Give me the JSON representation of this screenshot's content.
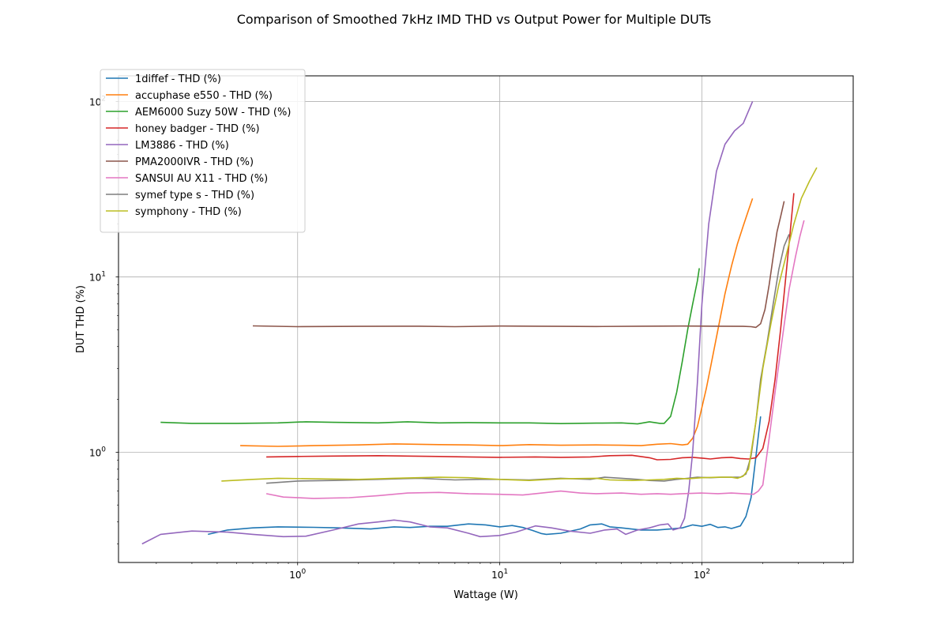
{
  "chart_data": {
    "type": "line",
    "title": "Comparison of Smoothed 7kHz IMD THD vs Output Power for Multiple DUTs",
    "xlabel": "Wattage (W)",
    "ylabel": "DUT THD (%)",
    "xscale": "log",
    "yscale": "log",
    "xlim": [
      0.13,
      560
    ],
    "ylim": [
      0.235,
      140
    ],
    "grid": true,
    "legend_position": "upper-left",
    "x_ticks": [
      {
        "value": 1,
        "base": "10",
        "exp": "0"
      },
      {
        "value": 10,
        "base": "10",
        "exp": "1"
      },
      {
        "value": 100,
        "base": "10",
        "exp": "2"
      }
    ],
    "y_ticks": [
      {
        "value": 1,
        "base": "10",
        "exp": "0"
      },
      {
        "value": 10,
        "base": "10",
        "exp": "1"
      },
      {
        "value": 100,
        "base": "10",
        "exp": "2"
      }
    ],
    "series": [
      {
        "name": "1diffef - THD (%)",
        "color": "#1f77b4",
        "points": [
          [
            0.36,
            0.34
          ],
          [
            0.45,
            0.36
          ],
          [
            0.6,
            0.37
          ],
          [
            0.8,
            0.375
          ],
          [
            1.2,
            0.373
          ],
          [
            1.6,
            0.37
          ],
          [
            2.3,
            0.365
          ],
          [
            3,
            0.375
          ],
          [
            3.6,
            0.372
          ],
          [
            4.5,
            0.378
          ],
          [
            5.5,
            0.378
          ],
          [
            7,
            0.39
          ],
          [
            8.5,
            0.385
          ],
          [
            10,
            0.375
          ],
          [
            11.5,
            0.382
          ],
          [
            13,
            0.372
          ],
          [
            14.5,
            0.358
          ],
          [
            16,
            0.344
          ],
          [
            17,
            0.34
          ],
          [
            20,
            0.345
          ],
          [
            25,
            0.365
          ],
          [
            28,
            0.385
          ],
          [
            32,
            0.39
          ],
          [
            35,
            0.375
          ],
          [
            40,
            0.37
          ],
          [
            50,
            0.36
          ],
          [
            60,
            0.36
          ],
          [
            70,
            0.365
          ],
          [
            80,
            0.37
          ],
          [
            90,
            0.385
          ],
          [
            100,
            0.378
          ],
          [
            110,
            0.388
          ],
          [
            120,
            0.372
          ],
          [
            130,
            0.375
          ],
          [
            140,
            0.367
          ],
          [
            155,
            0.38
          ],
          [
            165,
            0.43
          ],
          [
            175,
            0.55
          ],
          [
            185,
            0.95
          ],
          [
            195,
            1.6
          ]
        ]
      },
      {
        "name": "accuphase e550 - THD (%)",
        "color": "#ff7f0e",
        "points": [
          [
            0.52,
            1.09
          ],
          [
            0.8,
            1.08
          ],
          [
            1.2,
            1.09
          ],
          [
            2,
            1.1
          ],
          [
            3,
            1.115
          ],
          [
            5,
            1.105
          ],
          [
            7,
            1.1
          ],
          [
            10,
            1.09
          ],
          [
            14,
            1.105
          ],
          [
            20,
            1.095
          ],
          [
            30,
            1.1
          ],
          [
            40,
            1.095
          ],
          [
            50,
            1.09
          ],
          [
            60,
            1.11
          ],
          [
            70,
            1.12
          ],
          [
            80,
            1.1
          ],
          [
            85,
            1.11
          ],
          [
            90,
            1.2
          ],
          [
            95,
            1.4
          ],
          [
            100,
            1.8
          ],
          [
            105,
            2.3
          ],
          [
            110,
            3.0
          ],
          [
            120,
            5.0
          ],
          [
            130,
            8.0
          ],
          [
            140,
            11.5
          ],
          [
            150,
            15.5
          ],
          [
            160,
            19.5
          ],
          [
            170,
            24
          ],
          [
            178,
            28
          ]
        ]
      },
      {
        "name": "AEM6000 Suzy 50W - THD (%)",
        "color": "#2ca02c",
        "points": [
          [
            0.21,
            1.48
          ],
          [
            0.3,
            1.46
          ],
          [
            0.5,
            1.46
          ],
          [
            0.8,
            1.47
          ],
          [
            1.1,
            1.49
          ],
          [
            1.5,
            1.48
          ],
          [
            2.5,
            1.47
          ],
          [
            3.5,
            1.49
          ],
          [
            5,
            1.47
          ],
          [
            7,
            1.475
          ],
          [
            10,
            1.47
          ],
          [
            14,
            1.47
          ],
          [
            20,
            1.455
          ],
          [
            30,
            1.465
          ],
          [
            40,
            1.47
          ],
          [
            48,
            1.45
          ],
          [
            55,
            1.49
          ],
          [
            62,
            1.46
          ],
          [
            65,
            1.46
          ],
          [
            70,
            1.6
          ],
          [
            75,
            2.2
          ],
          [
            80,
            3.3
          ],
          [
            85,
            5.0
          ],
          [
            90,
            7.0
          ],
          [
            95,
            9.5
          ],
          [
            97,
            11.2
          ]
        ]
      },
      {
        "name": "honey badger - THD (%)",
        "color": "#d62728",
        "points": [
          [
            0.7,
            0.94
          ],
          [
            1,
            0.945
          ],
          [
            1.5,
            0.95
          ],
          [
            2.5,
            0.955
          ],
          [
            3.5,
            0.95
          ],
          [
            5,
            0.945
          ],
          [
            7,
            0.94
          ],
          [
            10,
            0.935
          ],
          [
            15,
            0.94
          ],
          [
            20,
            0.935
          ],
          [
            28,
            0.94
          ],
          [
            35,
            0.955
          ],
          [
            45,
            0.96
          ],
          [
            55,
            0.93
          ],
          [
            60,
            0.905
          ],
          [
            70,
            0.91
          ],
          [
            80,
            0.93
          ],
          [
            90,
            0.935
          ],
          [
            100,
            0.925
          ],
          [
            110,
            0.915
          ],
          [
            125,
            0.93
          ],
          [
            140,
            0.935
          ],
          [
            155,
            0.92
          ],
          [
            170,
            0.915
          ],
          [
            185,
            0.93
          ],
          [
            200,
            1.05
          ],
          [
            215,
            1.5
          ],
          [
            230,
            2.6
          ],
          [
            245,
            5.0
          ],
          [
            260,
            10.0
          ],
          [
            272,
            17.0
          ],
          [
            285,
            30
          ]
        ]
      },
      {
        "name": "LM3886 - THD (%)",
        "color": "#9467bd",
        "points": [
          [
            0.17,
            0.3
          ],
          [
            0.21,
            0.34
          ],
          [
            0.3,
            0.355
          ],
          [
            0.45,
            0.35
          ],
          [
            0.6,
            0.34
          ],
          [
            0.85,
            0.33
          ],
          [
            1.1,
            0.332
          ],
          [
            1.5,
            0.36
          ],
          [
            2,
            0.39
          ],
          [
            2.5,
            0.4
          ],
          [
            3,
            0.41
          ],
          [
            3.6,
            0.4
          ],
          [
            4.5,
            0.375
          ],
          [
            5.5,
            0.37
          ],
          [
            7,
            0.345
          ],
          [
            8,
            0.33
          ],
          [
            10,
            0.335
          ],
          [
            12,
            0.35
          ],
          [
            15,
            0.38
          ],
          [
            18,
            0.37
          ],
          [
            22,
            0.355
          ],
          [
            28,
            0.345
          ],
          [
            33,
            0.36
          ],
          [
            38,
            0.365
          ],
          [
            42,
            0.34
          ],
          [
            48,
            0.36
          ],
          [
            55,
            0.37
          ],
          [
            62,
            0.385
          ],
          [
            68,
            0.39
          ],
          [
            72,
            0.36
          ],
          [
            78,
            0.37
          ],
          [
            82,
            0.42
          ],
          [
            86,
            0.6
          ],
          [
            90,
            1.0
          ],
          [
            95,
            2.5
          ],
          [
            100,
            7.0
          ],
          [
            108,
            20
          ],
          [
            118,
            40
          ],
          [
            130,
            57
          ],
          [
            145,
            68
          ],
          [
            160,
            75
          ],
          [
            178,
            100
          ]
        ]
      },
      {
        "name": "PMA2000IVR - THD (%)",
        "color": "#8c564b",
        "points": [
          [
            0.6,
            5.25
          ],
          [
            1,
            5.2
          ],
          [
            2,
            5.22
          ],
          [
            4,
            5.23
          ],
          [
            6,
            5.2
          ],
          [
            10,
            5.24
          ],
          [
            15,
            5.23
          ],
          [
            20,
            5.22
          ],
          [
            30,
            5.21
          ],
          [
            50,
            5.23
          ],
          [
            80,
            5.24
          ],
          [
            120,
            5.23
          ],
          [
            160,
            5.22
          ],
          [
            175,
            5.2
          ],
          [
            185,
            5.15
          ],
          [
            195,
            5.4
          ],
          [
            205,
            6.5
          ],
          [
            215,
            9.0
          ],
          [
            225,
            13.0
          ],
          [
            235,
            18.0
          ],
          [
            245,
            22.0
          ],
          [
            255,
            27.0
          ]
        ]
      },
      {
        "name": "SANSUI AU X11 - THD (%)",
        "color": "#e377c2",
        "points": [
          [
            0.7,
            0.58
          ],
          [
            0.85,
            0.555
          ],
          [
            1.2,
            0.545
          ],
          [
            1.8,
            0.55
          ],
          [
            2.5,
            0.565
          ],
          [
            3.5,
            0.585
          ],
          [
            5,
            0.59
          ],
          [
            7,
            0.58
          ],
          [
            10,
            0.575
          ],
          [
            13,
            0.57
          ],
          [
            15,
            0.58
          ],
          [
            20,
            0.6
          ],
          [
            25,
            0.585
          ],
          [
            30,
            0.58
          ],
          [
            40,
            0.585
          ],
          [
            50,
            0.575
          ],
          [
            60,
            0.58
          ],
          [
            70,
            0.575
          ],
          [
            80,
            0.58
          ],
          [
            100,
            0.585
          ],
          [
            120,
            0.58
          ],
          [
            140,
            0.585
          ],
          [
            160,
            0.58
          ],
          [
            180,
            0.575
          ],
          [
            190,
            0.6
          ],
          [
            200,
            0.65
          ],
          [
            205,
            0.8
          ],
          [
            215,
            1.2
          ],
          [
            230,
            2.2
          ],
          [
            250,
            4.5
          ],
          [
            270,
            8.5
          ],
          [
            290,
            13.0
          ],
          [
            305,
            17.0
          ],
          [
            320,
            21.0
          ]
        ]
      },
      {
        "name": "symef type s - THD (%)",
        "color": "#7f7f7f",
        "points": [
          [
            0.7,
            0.665
          ],
          [
            1,
            0.685
          ],
          [
            1.5,
            0.69
          ],
          [
            2.5,
            0.7
          ],
          [
            4,
            0.71
          ],
          [
            6,
            0.695
          ],
          [
            8,
            0.7
          ],
          [
            10,
            0.7
          ],
          [
            14,
            0.695
          ],
          [
            20,
            0.71
          ],
          [
            28,
            0.7
          ],
          [
            33,
            0.72
          ],
          [
            40,
            0.71
          ],
          [
            48,
            0.7
          ],
          [
            55,
            0.69
          ],
          [
            65,
            0.685
          ],
          [
            75,
            0.7
          ],
          [
            85,
            0.71
          ],
          [
            95,
            0.72
          ],
          [
            110,
            0.715
          ],
          [
            125,
            0.72
          ],
          [
            140,
            0.72
          ],
          [
            155,
            0.72
          ],
          [
            165,
            0.75
          ],
          [
            175,
            0.95
          ],
          [
            185,
            1.5
          ],
          [
            195,
            2.6
          ],
          [
            210,
            4.2
          ],
          [
            225,
            7.0
          ],
          [
            240,
            11.0
          ],
          [
            255,
            15.0
          ],
          [
            270,
            17.5
          ]
        ]
      },
      {
        "name": "symphony - THD (%)",
        "color": "#bcbd22",
        "points": [
          [
            0.42,
            0.685
          ],
          [
            0.6,
            0.7
          ],
          [
            0.8,
            0.71
          ],
          [
            1.2,
            0.705
          ],
          [
            2,
            0.7
          ],
          [
            3,
            0.71
          ],
          [
            5,
            0.72
          ],
          [
            7,
            0.715
          ],
          [
            10,
            0.7
          ],
          [
            14,
            0.69
          ],
          [
            20,
            0.705
          ],
          [
            30,
            0.71
          ],
          [
            35,
            0.695
          ],
          [
            45,
            0.69
          ],
          [
            55,
            0.695
          ],
          [
            65,
            0.7
          ],
          [
            75,
            0.71
          ],
          [
            85,
            0.705
          ],
          [
            100,
            0.715
          ],
          [
            120,
            0.72
          ],
          [
            140,
            0.72
          ],
          [
            150,
            0.71
          ],
          [
            160,
            0.73
          ],
          [
            170,
            0.8
          ],
          [
            185,
            1.5
          ],
          [
            200,
            3.0
          ],
          [
            220,
            5.5
          ],
          [
            240,
            9.0
          ],
          [
            260,
            13.0
          ],
          [
            285,
            20.0
          ],
          [
            310,
            28.0
          ],
          [
            340,
            35.0
          ],
          [
            370,
            42
          ]
        ]
      }
    ]
  }
}
